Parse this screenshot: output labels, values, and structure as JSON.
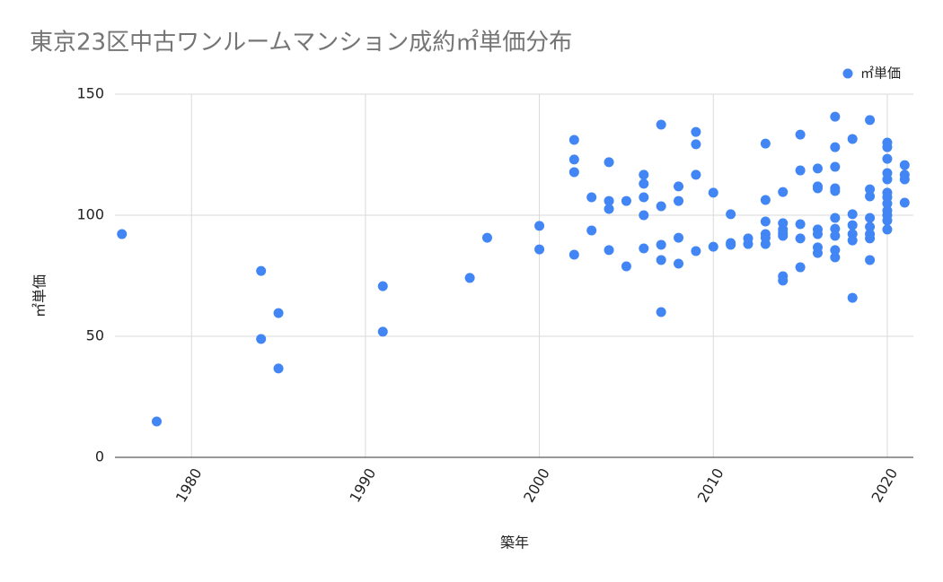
{
  "chart_data": {
    "type": "scatter",
    "title": "東京23区中古ワンルームマンション成約㎡単価分布",
    "x_label": "築年",
    "y_label": "㎡単価",
    "xlim": [
      1975.6,
      2021.5
    ],
    "xticks": [
      1980,
      1990,
      2000,
      2010,
      2020
    ],
    "ylim": [
      0,
      150
    ],
    "yticks": [
      0,
      50,
      100,
      150
    ],
    "grid": true,
    "legend": "top-right",
    "series": [
      {
        "name": "㎡単価",
        "color": "#4285f4",
        "x": [
          1976,
          1978,
          1984,
          1984,
          1985,
          1985,
          1991,
          1991,
          1996,
          1997,
          2000,
          2000,
          2002,
          2002,
          2002,
          2002,
          2003,
          2003,
          2004,
          2004,
          2004,
          2004,
          2005,
          2005,
          2006,
          2006,
          2006,
          2006,
          2006,
          2007,
          2007,
          2007,
          2007,
          2007,
          2008,
          2008,
          2008,
          2008,
          2009,
          2009,
          2009,
          2009,
          2010,
          2010,
          2011,
          2011,
          2011,
          2012,
          2012,
          2013,
          2013,
          2013,
          2013,
          2013,
          2013,
          2014,
          2014,
          2014,
          2014,
          2014,
          2014,
          2014,
          2015,
          2015,
          2015,
          2015,
          2015,
          2016,
          2016,
          2016,
          2016,
          2016,
          2016,
          2016,
          2017,
          2017,
          2017,
          2017,
          2017,
          2017,
          2017,
          2017,
          2017,
          2017,
          2018,
          2018,
          2018,
          2018,
          2018,
          2018,
          2019,
          2019,
          2019,
          2019,
          2019,
          2019,
          2019,
          2019,
          2020,
          2020,
          2020,
          2020,
          2020,
          2020,
          2020,
          2020,
          2020,
          2020,
          2020,
          2020,
          2021,
          2021,
          2021,
          2021
        ],
        "values": [
          92.2,
          14.8,
          77,
          48.9,
          59.6,
          36.7,
          70.7,
          51.9,
          74.1,
          90.7,
          95.6,
          85.9,
          131.1,
          123,
          117.8,
          83.7,
          107.4,
          93.7,
          121.9,
          105.9,
          102.6,
          85.6,
          105.9,
          78.9,
          116.7,
          113,
          107.4,
          100,
          86.3,
          137.4,
          103.7,
          87.8,
          81.5,
          60,
          111.9,
          105.9,
          90.7,
          80,
          134.4,
          129.3,
          116.7,
          85.2,
          109.3,
          87,
          100.4,
          88.5,
          87.8,
          90.4,
          88.1,
          129.6,
          106.3,
          97.4,
          92.2,
          90.7,
          88.1,
          109.6,
          96.7,
          94.1,
          92.6,
          91.5,
          74.8,
          73,
          133.3,
          118.5,
          96.3,
          90.4,
          78.5,
          119.3,
          111.9,
          111.1,
          94.1,
          92.2,
          86.7,
          84.4,
          140.7,
          128.1,
          120,
          111.1,
          110,
          98.9,
          94.4,
          91.5,
          85.6,
          82.6,
          131.5,
          100.4,
          95.9,
          92.2,
          89.6,
          65.9,
          139.3,
          110.7,
          107.8,
          98.9,
          95.2,
          92.2,
          90.4,
          81.5,
          130,
          128.1,
          123.3,
          117.4,
          114.8,
          109.3,
          107.4,
          104.8,
          101.9,
          100,
          97.8,
          94.1,
          120.7,
          116.7,
          114.8,
          105.2
        ]
      }
    ]
  }
}
